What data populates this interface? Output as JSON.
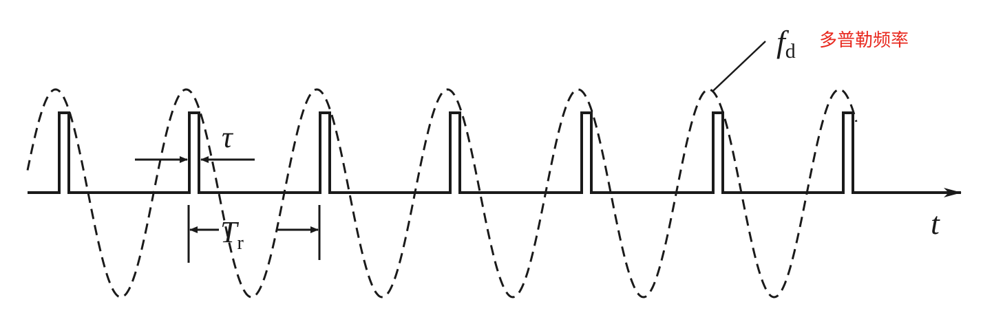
{
  "labels": {
    "tau": "τ",
    "period_main": "T",
    "period_sub": "r",
    "doppler_main": "f",
    "doppler_sub": "d",
    "doppler_note": "多普勒频率",
    "time_axis": "t"
  },
  "colors": {
    "ink": "#1a1a1a",
    "note": "#e8281e",
    "background": "#ffffff"
  }
}
